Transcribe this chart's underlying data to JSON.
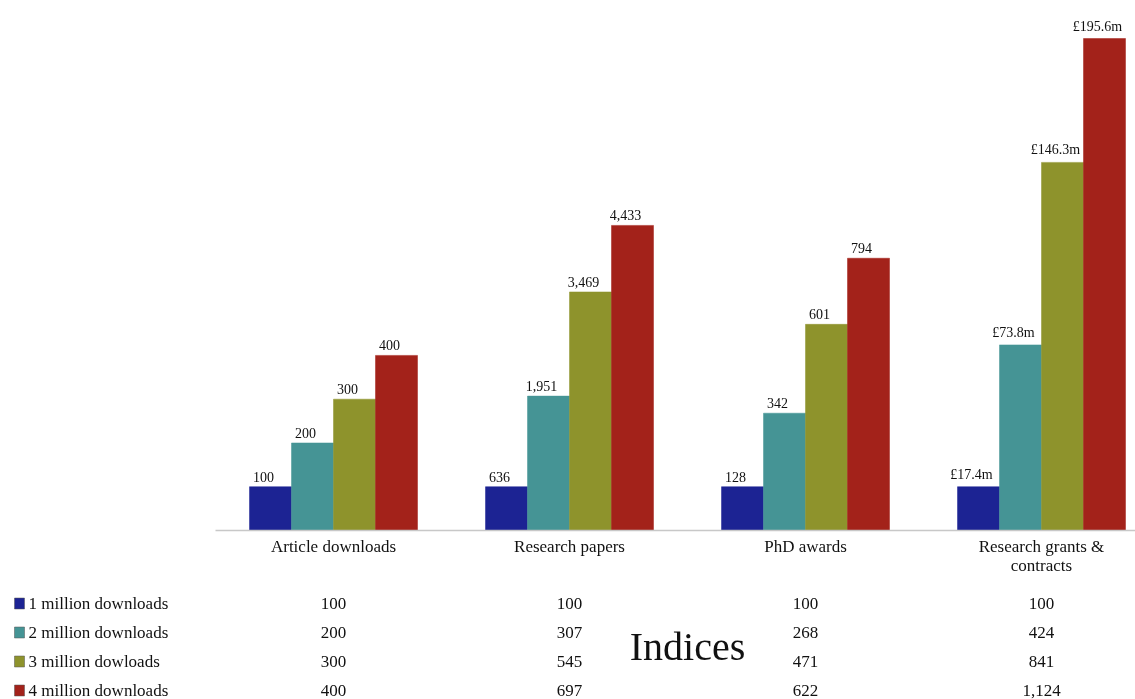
{
  "chart_data": {
    "type": "bar",
    "categories": [
      "Article downloads",
      "Research papers",
      "PhD awards",
      "Research grants & contracts"
    ],
    "series": [
      {
        "name": "1 million downloads",
        "color": "#1c2393",
        "values": [
          100,
          100,
          100,
          100
        ],
        "value_labels": [
          "100",
          "100",
          "100",
          "100"
        ]
      },
      {
        "name": "2 million downloads",
        "color": "#459495",
        "values": [
          200,
          307,
          268,
          424
        ],
        "value_labels": [
          "200",
          "307",
          "268",
          "424"
        ]
      },
      {
        "name": "3 million dowloads",
        "color": "#8e932c",
        "values": [
          300,
          545,
          471,
          841
        ],
        "value_labels": [
          "300",
          "545",
          "471",
          "841"
        ]
      },
      {
        "name": "4 million downloads",
        "color": "#a3221a",
        "values": [
          400,
          697,
          622,
          1124
        ],
        "value_labels": [
          "400",
          "697",
          "622",
          "1,124"
        ]
      }
    ],
    "legend": "bottom left",
    "grid": false,
    "annotations": [
      "100",
      "200",
      "300",
      "400",
      "636",
      "1,951",
      "3,469",
      "4,433",
      "128",
      "342",
      "601",
      "794",
      "£17.4m",
      "£73.8m",
      "£146.3m",
      "£195.6m",
      "Indices"
    ]
  }
}
